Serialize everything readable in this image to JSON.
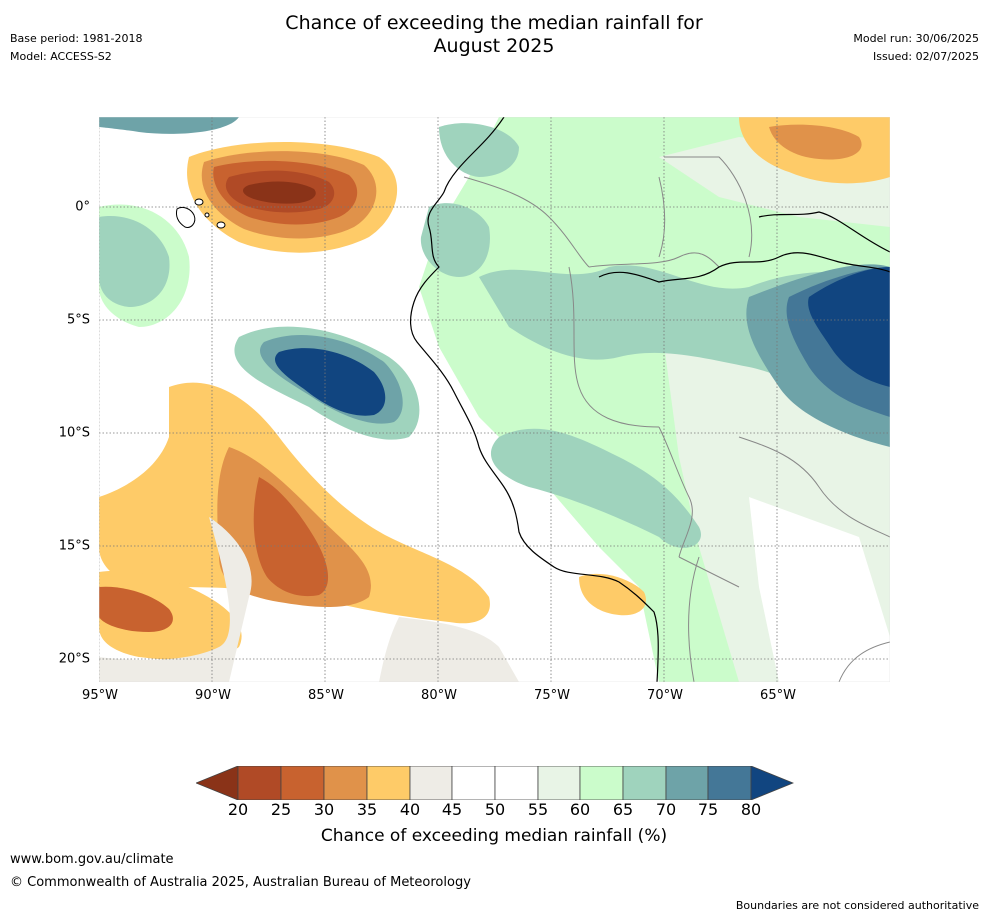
{
  "header": {
    "title_line1": "Chance of exceeding the median rainfall for",
    "title_line2": "August 2025",
    "base_period": "Base period: 1981-2018",
    "model": "Model: ACCESS-S2",
    "model_run": "Model run: 30/06/2025",
    "issued": "Issued: 02/07/2025"
  },
  "map": {
    "region": "South America - Peru / Ecuador / Pacific",
    "longitude_labels": [
      "95°W",
      "90°W",
      "85°W",
      "80°W",
      "75°W",
      "70°W",
      "65°W"
    ],
    "longitude_values": [
      -95,
      -90,
      -85,
      -80,
      -75,
      -70,
      -65
    ],
    "latitude_labels": [
      "0°",
      "5°S",
      "10°S",
      "15°S",
      "20°S"
    ],
    "latitude_values": [
      0,
      -5,
      -10,
      -15,
      -20
    ],
    "lon_range": [
      -95,
      -60
    ],
    "lat_range": [
      -21,
      4
    ],
    "grid": true
  },
  "colorbar": {
    "ticks": [
      "20",
      "25",
      "30",
      "35",
      "40",
      "45",
      "50",
      "55",
      "60",
      "65",
      "70",
      "75",
      "80"
    ],
    "colors": {
      "below_20": "#8a3318",
      "20-25": "#b04a26",
      "25-30": "#c8622f",
      "30-35": "#e0924a",
      "35-40": "#fecb68",
      "40-45": "#eeece6",
      "45-50": "#ffffff",
      "50-55": "#ffffff",
      "55-60": "#e8f4e6",
      "60-65": "#cbfccb",
      "65-70": "#9fd3bd",
      "70-75": "#6ea3a8",
      "75-80": "#447797",
      "above_80": "#114580"
    },
    "label": "Chance of exceeding median rainfall (%)"
  },
  "footer": {
    "url": "www.bom.gov.au/climate",
    "copyright": "© Commonwealth of Australia 2025, Australian Bureau of Meteorology",
    "disclaimer": "Boundaries are not considered authoritative"
  }
}
